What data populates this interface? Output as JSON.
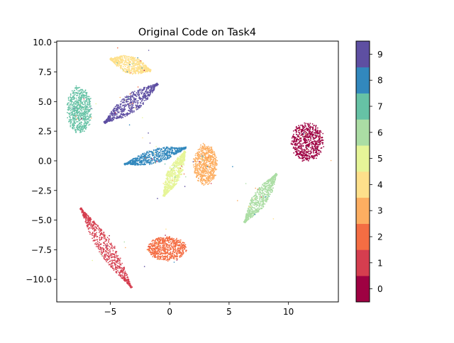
{
  "chart_data": {
    "type": "scatter",
    "title": "Original Code on Task4",
    "xlabel": "",
    "ylabel": "",
    "xlim": [
      -9.5,
      14.2
    ],
    "ylim": [
      -11.9,
      10.1
    ],
    "xticks": [
      -5,
      0,
      5,
      10
    ],
    "yticks": [
      10.0,
      7.5,
      5.0,
      2.5,
      0.0,
      -2.5,
      -5.0,
      -7.5,
      -10.0
    ],
    "xtick_labels": [
      "−5",
      "0",
      "5",
      "10"
    ],
    "ytick_labels": [
      "10.0",
      "7.5",
      "5.0",
      "2.5",
      "0.0",
      "−2.5",
      "−5.0",
      "−7.5",
      "−10.0"
    ],
    "grid": false,
    "colorbar": {
      "labels": [
        "0",
        "1",
        "2",
        "3",
        "4",
        "5",
        "6",
        "7",
        "8",
        "9"
      ],
      "colors": [
        "#9e0142",
        "#d53e4f",
        "#f46d43",
        "#fdae61",
        "#fee08b",
        "#e6f598",
        "#abdda4",
        "#66c2a5",
        "#3288bd",
        "#5e4fa2"
      ]
    },
    "clusters": [
      {
        "label": "0",
        "center": [
          11.6,
          1.6
        ],
        "shape": "ellipse",
        "rx": 1.45,
        "ry": 1.7
      },
      {
        "label": "1",
        "from": [
          -7.5,
          -4.0
        ],
        "to": [
          -3.2,
          -10.7
        ],
        "width": 1.3
      },
      {
        "label": "2",
        "center": [
          -0.2,
          -7.4
        ],
        "shape": "blob",
        "rx": 1.75,
        "ry": 1.05
      },
      {
        "label": "3",
        "center": [
          3.0,
          -0.3
        ],
        "shape": "ellipse",
        "rx": 1.05,
        "ry": 1.8
      },
      {
        "label": "4",
        "from": [
          -5.0,
          8.6
        ],
        "to": [
          -1.6,
          7.6
        ],
        "width": 1.5
      },
      {
        "label": "5",
        "from": [
          1.3,
          0.8
        ],
        "to": [
          -0.5,
          -3.0
        ],
        "width": 1.2
      },
      {
        "label": "6",
        "from": [
          9.0,
          -1.1
        ],
        "to": [
          6.3,
          -5.2
        ],
        "width": 1.3
      },
      {
        "label": "7",
        "center": [
          -7.6,
          4.3
        ],
        "shape": "ellipse",
        "rx": 1.1,
        "ry": 2.1
      },
      {
        "label": "8",
        "from": [
          -3.8,
          -0.3
        ],
        "to": [
          1.4,
          1.1
        ],
        "width": 1.2
      },
      {
        "label": "9",
        "from": [
          -5.5,
          3.2
        ],
        "to": [
          -1.0,
          6.5
        ],
        "width": 1.5
      }
    ]
  }
}
